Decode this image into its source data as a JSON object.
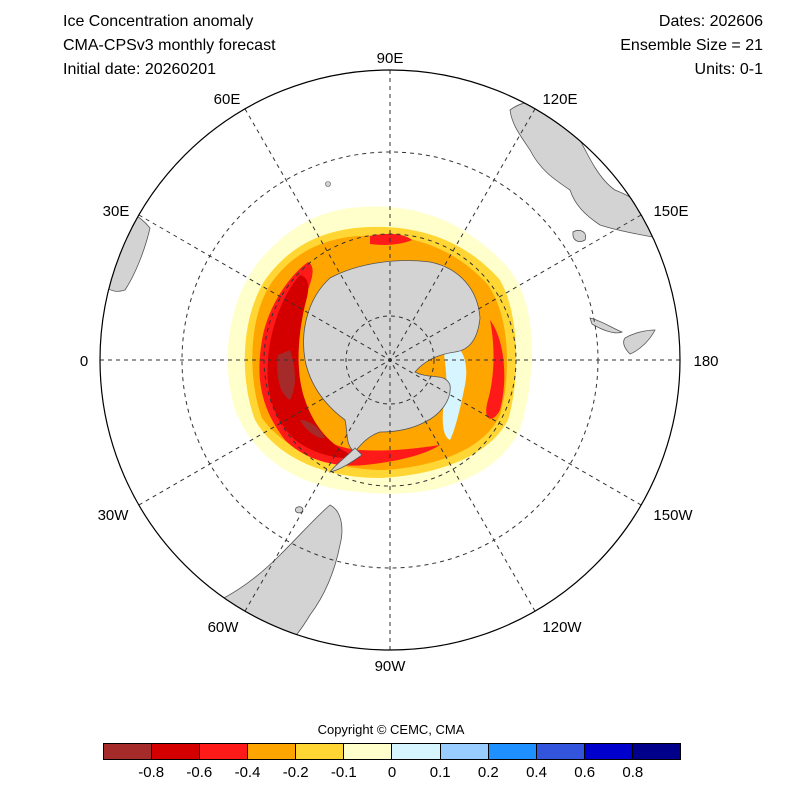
{
  "header": {
    "title": "Ice Concentration anomaly",
    "model": "CMA-CPSv3 monthly forecast",
    "initial_date": "Initial date: 20260201",
    "dates": "Dates: 202606",
    "ensemble": "Ensemble Size = 21",
    "units": "Units: 0-1"
  },
  "map": {
    "projection": "south polar stereographic",
    "longitude_labels": [
      "90E",
      "120E",
      "150E",
      "180",
      "150W",
      "120W",
      "90W",
      "60W",
      "30W",
      "0",
      "30E",
      "60E"
    ],
    "land_color": "#d3d3d3",
    "grid": "dashed"
  },
  "colorbar": {
    "colors": [
      "#a52a2a",
      "#d40000",
      "#ff1a1a",
      "#ffa500",
      "#ffd633",
      "#ffffcc",
      "#d6f5ff",
      "#99ccff",
      "#1e90ff",
      "#3355dd",
      "#0000cc",
      "#00008b"
    ],
    "tick_labels": [
      "-0.8",
      "-0.6",
      "-0.4",
      "-0.2",
      "-0.1",
      "0",
      "0.1",
      "0.2",
      "0.4",
      "0.6",
      "0.8"
    ]
  },
  "copyright": "Copyright © CEMC, CMA"
}
